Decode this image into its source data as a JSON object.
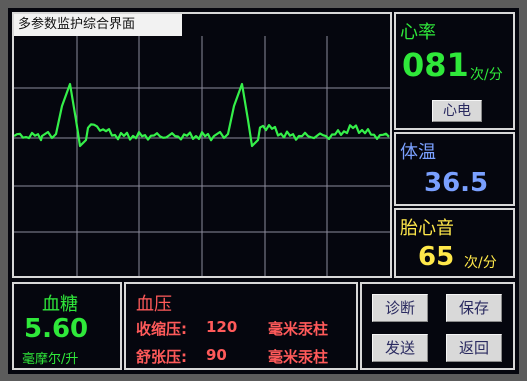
{
  "ecg": {
    "title": "多参数监护综合界面"
  },
  "heart_rate": {
    "label": "心率",
    "value": "081",
    "unit": "次/分",
    "button": "心电"
  },
  "temperature": {
    "label": "体温",
    "value": "36.5"
  },
  "fetal_heart": {
    "label": "胎心音",
    "value": "65",
    "unit": "次/分"
  },
  "glucose": {
    "label": "血糖",
    "value": "5.60",
    "unit": "毫摩尔/升"
  },
  "blood_pressure": {
    "label": "血压",
    "systolic_label": "收缩压:",
    "systolic_value": "120",
    "diastolic_label": "舒张压:",
    "diastolic_value": "90",
    "unit": "毫米汞柱"
  },
  "actions": {
    "diagnose": "诊断",
    "save": "保存",
    "send": "发送",
    "back": "返回"
  },
  "colors": {
    "green": "#2fe83a",
    "blue": "#7aa0ff",
    "yellow": "#ffe84a",
    "red": "#ff5a5a",
    "wave": "#35f04a",
    "grid": "#c8c8d6"
  }
}
